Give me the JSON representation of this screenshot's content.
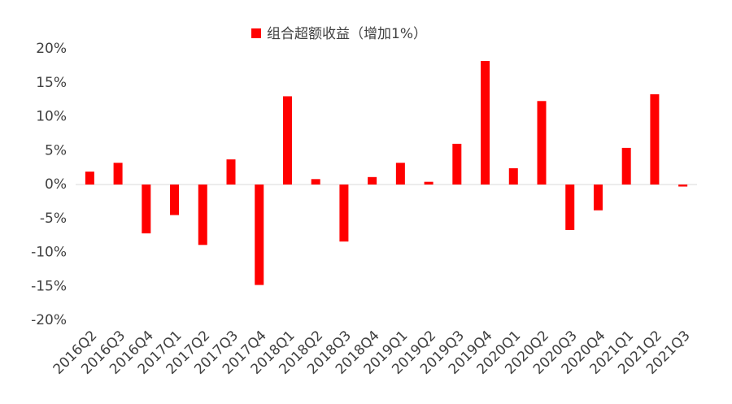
{
  "chart_data": {
    "type": "bar",
    "categories": [
      "2016Q2",
      "2016Q3",
      "2016Q4",
      "2017Q1",
      "2017Q2",
      "2017Q3",
      "2017Q4",
      "2018Q1",
      "2018Q2",
      "2018Q3",
      "2018Q4",
      "2019Q1",
      "2019Q2",
      "2019Q3",
      "2019Q4",
      "2020Q1",
      "2020Q2",
      "2020Q3",
      "2020Q4",
      "2021Q1",
      "2021Q2",
      "2021Q3"
    ],
    "series": [
      {
        "name": "组合超额收益（增加1%）",
        "color": "#ff0000",
        "values": [
          1.9,
          3.2,
          -7.2,
          -4.5,
          -8.9,
          3.7,
          -14.8,
          13.0,
          0.8,
          -8.4,
          1.1,
          3.2,
          0.4,
          6.0,
          18.2,
          2.4,
          12.3,
          -6.7,
          -3.8,
          5.4,
          13.3,
          -0.3
        ]
      }
    ],
    "ylim": [
      -20,
      20
    ],
    "yticks": [
      {
        "value": -20,
        "label": "-20%"
      },
      {
        "value": -15,
        "label": "-15%"
      },
      {
        "value": -10,
        "label": "-10%"
      },
      {
        "value": -5,
        "label": "-5%"
      },
      {
        "value": 0,
        "label": "0%"
      },
      {
        "value": 5,
        "label": "5%"
      },
      {
        "value": 10,
        "label": "10%"
      },
      {
        "value": 15,
        "label": "15%"
      },
      {
        "value": 20,
        "label": "20%"
      }
    ],
    "legend": "top"
  }
}
